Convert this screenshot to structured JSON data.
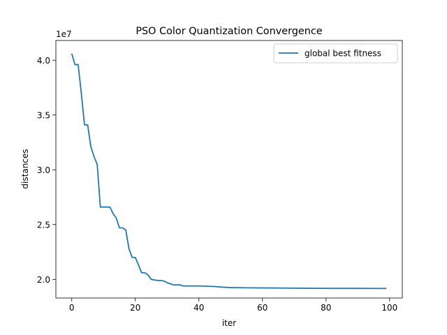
{
  "chart_data": {
    "type": "line",
    "title": "PSO Color Quantization Convergence",
    "xlabel": "iter",
    "ylabel": "distances",
    "y_offset_label": "1e7",
    "xlim": [
      -5,
      104
    ],
    "ylim": [
      1.83,
      4.18
    ],
    "x_ticks": [
      0,
      20,
      40,
      60,
      80,
      100
    ],
    "x_tick_labels": [
      "0",
      "20",
      "40",
      "60",
      "80",
      "100"
    ],
    "y_ticks": [
      2.0,
      2.5,
      3.0,
      3.5,
      4.0
    ],
    "y_tick_labels": [
      "2.0",
      "2.5",
      "3.0",
      "3.5",
      "4.0"
    ],
    "grid": false,
    "legend_position": "upper right",
    "series": [
      {
        "name": "global best fitness",
        "color": "#1f77b4",
        "points": [
          [
            0,
            4.06
          ],
          [
            1,
            3.96
          ],
          [
            2,
            3.96
          ],
          [
            3,
            3.7
          ],
          [
            4,
            3.41
          ],
          [
            5,
            3.41
          ],
          [
            6,
            3.21
          ],
          [
            7,
            3.12
          ],
          [
            8,
            3.05
          ],
          [
            9,
            2.66
          ],
          [
            10,
            2.66
          ],
          [
            11,
            2.66
          ],
          [
            12,
            2.66
          ],
          [
            13,
            2.6
          ],
          [
            14,
            2.56
          ],
          [
            15,
            2.47
          ],
          [
            16,
            2.47
          ],
          [
            17,
            2.45
          ],
          [
            18,
            2.28
          ],
          [
            19,
            2.2
          ],
          [
            20,
            2.2
          ],
          [
            21,
            2.13
          ],
          [
            22,
            2.06
          ],
          [
            23,
            2.06
          ],
          [
            24,
            2.04
          ],
          [
            25,
            2.0
          ],
          [
            26,
            1.995
          ],
          [
            27,
            1.99
          ],
          [
            28,
            1.99
          ],
          [
            29,
            1.985
          ],
          [
            30,
            1.97
          ],
          [
            31,
            1.96
          ],
          [
            32,
            1.95
          ],
          [
            33,
            1.95
          ],
          [
            34,
            1.95
          ],
          [
            35,
            1.94
          ],
          [
            40,
            1.94
          ],
          [
            45,
            1.935
          ],
          [
            47,
            1.93
          ],
          [
            50,
            1.925
          ],
          [
            55,
            1.923
          ],
          [
            60,
            1.922
          ],
          [
            70,
            1.92
          ],
          [
            80,
            1.918
          ],
          [
            90,
            1.918
          ],
          [
            99,
            1.917
          ]
        ]
      }
    ]
  }
}
